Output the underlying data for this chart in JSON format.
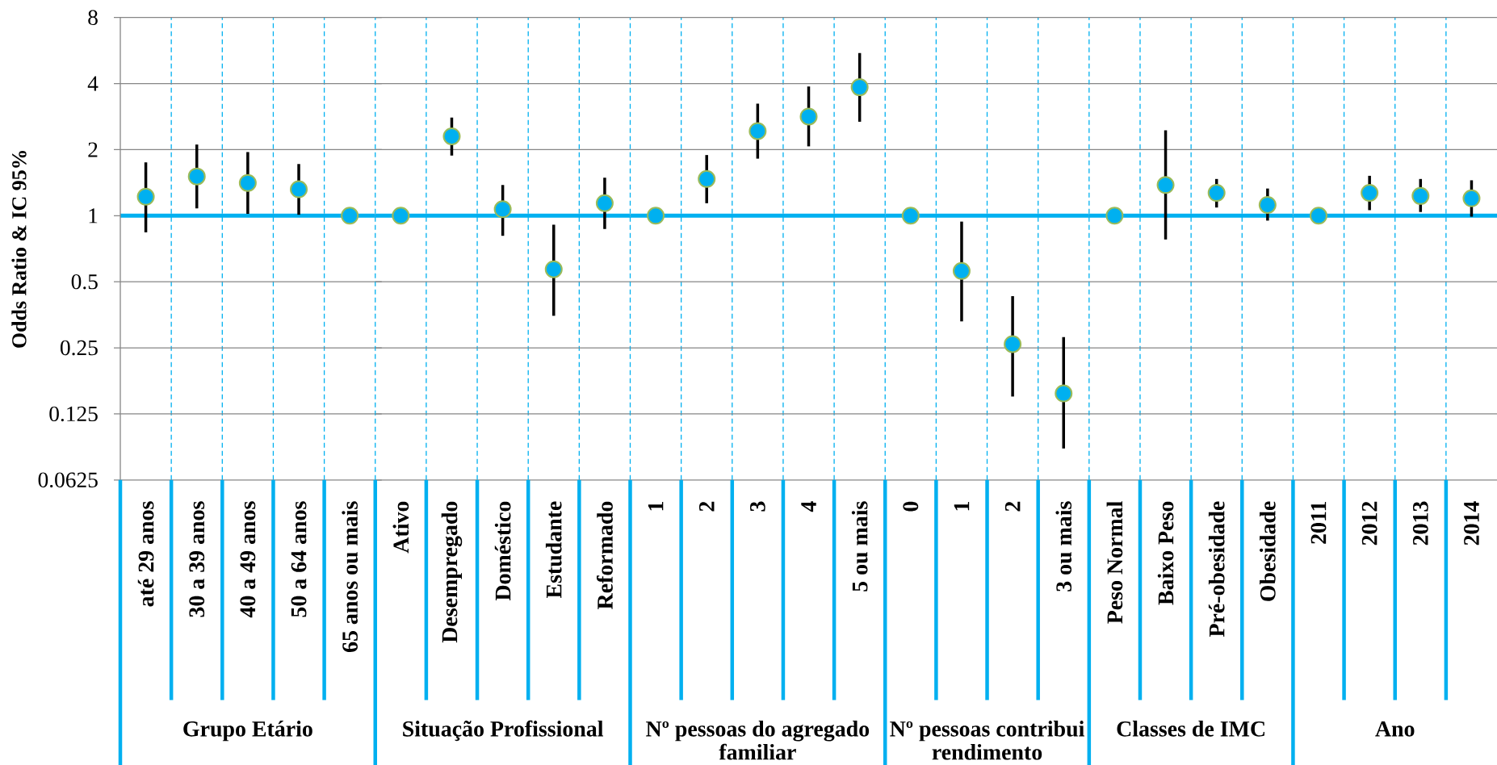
{
  "chart_data": [
    {
      "type": "scatter",
      "xlabel": "Grupo Etário",
      "ylabel": "Odds Ratio & IC 95%",
      "categories": [
        "até 29 anos",
        "30 a 39 anos",
        "40 a 49 anos",
        "50 a 64 anos",
        "65 anos ou mais"
      ],
      "values": [
        1.22,
        1.51,
        1.41,
        1.32,
        1
      ],
      "errors": [
        [
          0.84,
          1.75
        ],
        [
          1.08,
          2.11
        ],
        [
          1.02,
          1.95
        ],
        [
          1.01,
          1.72
        ],
        null
      ],
      "color": "#00b0f0",
      "marker": "circle",
      "log": true,
      "ylim": [
        0.0625,
        8
      ],
      "yticks": [
        0.0625,
        0.125,
        0.25,
        0.5,
        1,
        2,
        4,
        8
      ],
      "grid": true,
      "ref_lines": [
        {
          "axis": "y",
          "value": 1,
          "color": "#00b0f0"
        }
      ]
    },
    {
      "type": "scatter",
      "xlabel": "Situação Profissional",
      "categories": [
        "Ativo",
        "Desempregado",
        "Doméstico",
        "Estudante",
        "Reformado"
      ],
      "values": [
        1,
        2.3,
        1.07,
        0.57,
        1.14
      ],
      "errors": [
        null,
        [
          1.88,
          2.8
        ],
        [
          0.81,
          1.38
        ],
        [
          0.35,
          0.91
        ],
        [
          0.87,
          1.49
        ]
      ],
      "color": "#00b0f0",
      "marker": "circle",
      "log": true,
      "ylim": [
        0.0625,
        8
      ],
      "yticks": [
        0.0625,
        0.125,
        0.25,
        0.5,
        1,
        2,
        4,
        8
      ],
      "tick_labels": "x",
      "grid": true,
      "ref_lines": [
        {
          "axis": "y",
          "value": 1,
          "color": "#00b0f0"
        }
      ]
    },
    {
      "type": "scatter",
      "xlabel": "Nº pessoas do agregado familiar",
      "categories": [
        "1",
        "2",
        "3",
        "4",
        "5 ou mais"
      ],
      "values": [
        1,
        1.47,
        2.43,
        2.83,
        3.85
      ],
      "errors": [
        null,
        [
          1.14,
          1.89
        ],
        [
          1.82,
          3.24
        ],
        [
          2.07,
          3.88
        ],
        [
          2.68,
          5.51
        ]
      ],
      "color": "#00b0f0",
      "marker": "circle",
      "log": true,
      "ylim": [
        0.0625,
        8
      ],
      "yticks": [
        0.0625,
        0.125,
        0.25,
        0.5,
        1,
        2,
        4,
        8
      ],
      "tick_labels": "x",
      "grid": true,
      "ref_lines": [
        {
          "axis": "y",
          "value": 1,
          "color": "#00b0f0"
        }
      ]
    },
    {
      "type": "scatter",
      "xlabel": "Nº pessoas contribui rendimento",
      "categories": [
        "0",
        "1",
        "2",
        "3 ou mais"
      ],
      "values": [
        1,
        0.56,
        0.26,
        0.155
      ],
      "errors": [
        null,
        [
          0.33,
          0.94
        ],
        [
          0.15,
          0.43
        ],
        [
          0.087,
          0.28
        ]
      ],
      "color": "#00b0f0",
      "marker": "circle",
      "log": true,
      "ylim": [
        0.0625,
        8
      ],
      "yticks": [
        0.0625,
        0.125,
        0.25,
        0.5,
        1,
        2,
        4,
        8
      ],
      "tick_labels": "x",
      "grid": true,
      "ref_lines": [
        {
          "axis": "y",
          "value": 1,
          "color": "#00b0f0"
        }
      ]
    },
    {
      "type": "scatter",
      "xlabel": "Classes de IMC",
      "categories": [
        "Peso Normal",
        "Baixo Peso",
        "Pré-obesidade",
        "Obesidade"
      ],
      "values": [
        1,
        1.38,
        1.27,
        1.12
      ],
      "errors": [
        null,
        [
          0.78,
          2.45
        ],
        [
          1.09,
          1.47
        ],
        [
          0.95,
          1.33
        ]
      ],
      "color": "#00b0f0",
      "marker": "circle",
      "log": true,
      "ylim": [
        0.0625,
        8
      ],
      "yticks": [
        0.0625,
        0.125,
        0.25,
        0.5,
        1,
        2,
        4,
        8
      ],
      "tick_labels": "x",
      "grid": true,
      "ref_lines": [
        {
          "axis": "y",
          "value": 1,
          "color": "#00b0f0"
        }
      ]
    },
    {
      "type": "scatter",
      "xlabel": "Ano",
      "categories": [
        "2011",
        "2012",
        "2013",
        "2014"
      ],
      "values": [
        1,
        1.27,
        1.23,
        1.2
      ],
      "errors": [
        null,
        [
          1.06,
          1.52
        ],
        [
          1.04,
          1.47
        ],
        [
          0.99,
          1.45
        ]
      ],
      "color": "#00b0f0",
      "marker": "circle",
      "log": true,
      "ylim": [
        0.0625,
        8
      ],
      "yticks": [
        0.0625,
        0.125,
        0.25,
        0.5,
        1,
        2,
        4,
        8
      ],
      "tick_labels": "x",
      "grid": true,
      "ref_lines": [
        {
          "axis": "y",
          "value": 1,
          "color": "#00b0f0"
        }
      ]
    }
  ]
}
